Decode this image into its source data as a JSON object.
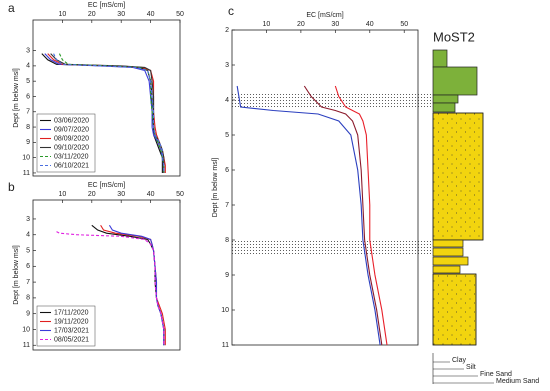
{
  "chart_data": [
    {
      "type": "line",
      "label": "a",
      "xlabel": "EC [mS/cm]",
      "ylabel": "Dept [m below msl]",
      "xlim": [
        0,
        50
      ],
      "ylim": [
        1,
        11.2
      ],
      "xticks": [
        10,
        20,
        30,
        40,
        50
      ],
      "yticks": [
        3,
        4,
        5,
        6,
        7,
        8,
        9,
        10,
        11
      ],
      "y_inverted": true,
      "legend": "lower left",
      "series": [
        {
          "name": "03/06/2020",
          "color": "#111111",
          "dash": false,
          "y": [
            3.2,
            3.6,
            3.9,
            4.0,
            4.1,
            4.3,
            5,
            6,
            7,
            8,
            8.5,
            9,
            9.5,
            10,
            10.5,
            11
          ],
          "x": [
            3,
            5,
            8,
            25,
            36,
            39,
            40,
            40.5,
            40.5,
            41,
            41,
            42,
            43,
            44,
            44,
            44
          ]
        },
        {
          "name": "09/07/2020",
          "color": "#3b3bd9",
          "dash": false,
          "y": [
            3.2,
            3.6,
            3.9,
            4.0,
            4.1,
            4.3,
            5,
            6,
            7,
            8,
            8.5,
            9,
            9.5,
            10,
            10.5,
            11
          ],
          "x": [
            4,
            6,
            9,
            22,
            34,
            38,
            39.5,
            40,
            40.5,
            40.5,
            41,
            42.5,
            43.5,
            44,
            44.5,
            44.5
          ]
        },
        {
          "name": "08/09/2020",
          "color": "#e02020",
          "dash": false,
          "y": [
            3.2,
            3.6,
            3.9,
            4.0,
            4.1,
            4.3,
            5,
            6,
            7,
            8,
            8.5,
            9,
            9.5,
            10,
            10.5,
            11
          ],
          "x": [
            5,
            7,
            10,
            28,
            37,
            40,
            41,
            41,
            41,
            41.5,
            42,
            43,
            44,
            44.5,
            45,
            45
          ]
        },
        {
          "name": "09/10/2020",
          "color": "#333333",
          "dash": false,
          "y": [
            3.2,
            3.6,
            3.9,
            4.0,
            4.1,
            4.3,
            5,
            6,
            7,
            8,
            8.5,
            9,
            9.5,
            10,
            10.5,
            11
          ],
          "x": [
            6,
            8,
            11,
            30,
            38,
            40,
            40.5,
            41,
            41,
            41,
            41.5,
            43,
            44,
            44.5,
            44.5,
            44.5
          ]
        },
        {
          "name": "03/11/2020",
          "color": "#2a9a2a",
          "dash": true,
          "y": [
            3.2,
            3.6,
            3.9,
            4.0,
            4.1,
            4.3,
            5,
            6,
            7,
            8,
            8.5,
            9,
            9.5,
            10,
            10.5,
            11
          ],
          "x": [
            9,
            10,
            12,
            26,
            36,
            39,
            40,
            40,
            40.5,
            41,
            41.5,
            42.5,
            43.5,
            44,
            44.5,
            44.5
          ]
        },
        {
          "name": "06/10/2021",
          "color": "#4a6fe0",
          "dash": true,
          "y": [
            3.2,
            3.6,
            3.9,
            4.0,
            4.1,
            4.3,
            5,
            6,
            7,
            8,
            8.5,
            9,
            9.5,
            10,
            10.5,
            11
          ],
          "x": [
            7,
            8,
            10,
            24,
            35,
            39,
            40,
            40.5,
            41,
            41,
            41.5,
            43,
            44,
            44,
            44.5,
            44.5
          ]
        }
      ]
    },
    {
      "type": "line",
      "label": "b",
      "xlabel": "EC [mS/cm]",
      "ylabel": "Dept [m below msl]",
      "xlim": [
        0,
        50
      ],
      "ylim": [
        1.8,
        11.3
      ],
      "xticks": [
        10,
        20,
        30,
        40,
        50
      ],
      "yticks": [
        3,
        4,
        5,
        6,
        7,
        8,
        9,
        10,
        11
      ],
      "y_inverted": true,
      "legend": "lower left",
      "series": [
        {
          "name": "17/11/2020",
          "color": "#111111",
          "dash": false,
          "y": [
            3.4,
            3.7,
            3.9,
            4.1,
            4.3,
            4.6,
            5,
            6,
            7,
            8,
            8.5,
            9,
            9.5,
            10,
            11
          ],
          "x": [
            20,
            22,
            25,
            33,
            39,
            40,
            41,
            41.5,
            41.5,
            42,
            42.5,
            43.5,
            44,
            44.5,
            44.5
          ]
        },
        {
          "name": "19/11/2020",
          "color": "#e02020",
          "dash": false,
          "y": [
            3.4,
            3.7,
            3.9,
            4.1,
            4.3,
            4.6,
            5,
            6,
            7,
            8,
            8.5,
            9,
            9.5,
            10,
            11
          ],
          "x": [
            23,
            24,
            28,
            36,
            40,
            40.5,
            41,
            41.5,
            42,
            42,
            43,
            44,
            44.5,
            45,
            45
          ]
        },
        {
          "name": "17/03/2021",
          "color": "#3b3bd9",
          "dash": false,
          "y": [
            3.4,
            3.7,
            3.9,
            4.1,
            4.3,
            4.6,
            5,
            6,
            7,
            8,
            8.5,
            9,
            9.5,
            10,
            11
          ],
          "x": [
            26,
            27,
            30,
            37,
            40,
            40.5,
            41,
            41.5,
            42,
            42,
            42.5,
            43.5,
            44,
            44.5,
            44.5
          ]
        },
        {
          "name": "08/05/2021",
          "color": "#e020e0",
          "dash": true,
          "y": [
            3.8,
            3.9,
            4.0,
            4.1,
            4.3,
            4.6,
            5,
            6,
            7,
            8,
            8.5,
            9,
            9.5,
            10,
            11
          ],
          "x": [
            8,
            9,
            15,
            30,
            38,
            40,
            41,
            41.5,
            41.5,
            42,
            42.5,
            43.5,
            44,
            44.5,
            44.5
          ]
        }
      ]
    },
    {
      "type": "line",
      "label": "c",
      "xlabel": "EC [mS/cm]",
      "ylabel": "Dept [m below msl]",
      "xlim": [
        0,
        54
      ],
      "ylim": [
        2,
        11
      ],
      "xticks": [
        10,
        20,
        30,
        40,
        50
      ],
      "yticks": [
        2,
        3,
        4,
        5,
        6,
        7,
        8,
        9,
        10,
        11
      ],
      "y_inverted": true,
      "series": [
        {
          "color": "#2b3fbf",
          "dash": false,
          "y": [
            3.6,
            3.9,
            4.2,
            4.3,
            4.4,
            4.6,
            5,
            6,
            7,
            8,
            9,
            10,
            11
          ],
          "x": [
            1.5,
            2,
            2.5,
            12,
            25,
            31,
            34.5,
            36.5,
            37.5,
            38,
            39.5,
            41.5,
            43
          ]
        },
        {
          "color": "#8b1a2b",
          "dash": false,
          "y": [
            3.6,
            3.9,
            4.2,
            4.3,
            4.4,
            4.6,
            5,
            6,
            7,
            8,
            9,
            10,
            11
          ],
          "x": [
            21,
            23,
            26,
            30,
            33,
            35,
            36.5,
            37.5,
            38,
            38.5,
            40,
            42,
            43.5
          ]
        },
        {
          "color": "#e8202a",
          "dash": false,
          "y": [
            3.6,
            3.9,
            4.2,
            4.3,
            4.4,
            4.6,
            5,
            6,
            7,
            8,
            9,
            10,
            11
          ],
          "x": [
            30,
            31,
            33,
            35,
            37,
            38,
            39,
            39.5,
            40,
            40,
            41.5,
            43.5,
            45
          ]
        }
      ]
    }
  ],
  "lithology": {
    "title": "MoST2",
    "grain_sizes": [
      "Clay",
      "Silt",
      "Fine Sand",
      "Medium Sand"
    ]
  }
}
